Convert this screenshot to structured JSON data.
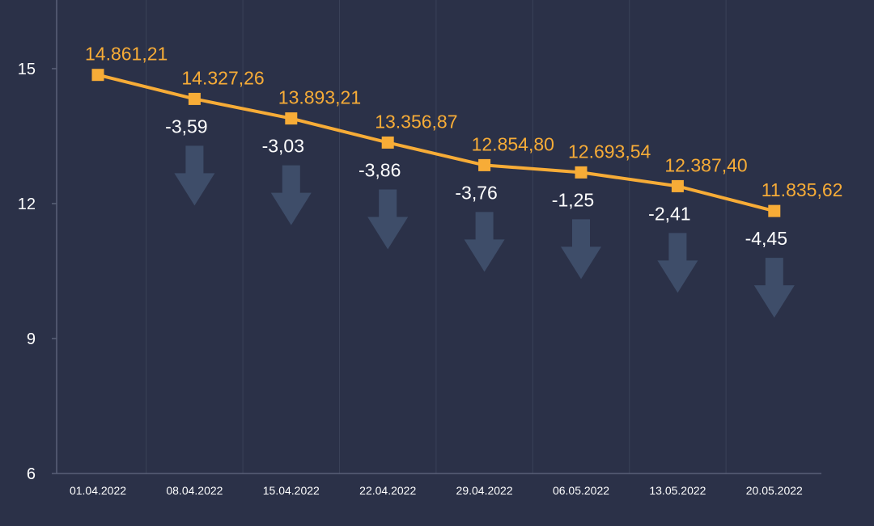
{
  "chart_data": {
    "type": "line",
    "categories": [
      "01.04.2022",
      "08.04.2022",
      "15.04.2022",
      "22.04.2022",
      "29.04.2022",
      "06.05.2022",
      "13.05.2022",
      "20.05.2022"
    ],
    "values": [
      14.86121,
      14.32726,
      13.89321,
      13.35687,
      12.8548,
      12.69354,
      12.3874,
      11.83562
    ],
    "value_labels": [
      "14.861,21",
      "14.327,26",
      "13.893,21",
      "13.356,87",
      "12.854,80",
      "12.693,54",
      "12.387,40",
      "11.835,62"
    ],
    "change_labels": [
      "",
      "-3,59",
      "-3,03",
      "-3,86",
      "-3,76",
      "-1,25",
      "-2,41",
      "-4,45"
    ],
    "yticks": [
      6,
      9,
      12,
      15
    ],
    "ylim": [
      6,
      16
    ],
    "title": "",
    "xlabel": "",
    "ylabel": "",
    "grid": "vertical",
    "colors": {
      "background": "#2b3148",
      "line": "#f7ac37",
      "value_label": "#f7ac37",
      "change_label": "#ffffff",
      "arrow": "#3e4d69",
      "grid": "#3a4158",
      "axis": "#5a6178"
    }
  }
}
